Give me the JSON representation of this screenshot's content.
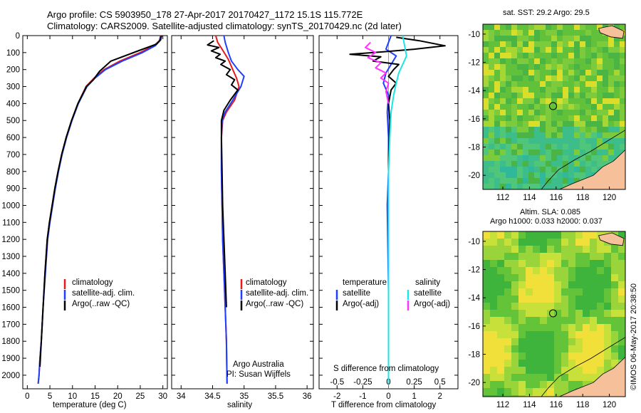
{
  "header": {
    "line1": "Argo profile: CS 5903950_178 27-Apr-2017 20170427_1172 15.1S 115.772E",
    "line2": "Climatology: CARS2009. Satellite-adjusted climatology: synTS_20170429.nc (2d later)"
  },
  "credit": "©IMOS 06-May-2017 20:38:50",
  "colors": {
    "climatology": "#e41a1c",
    "satellite": "#1f3fff",
    "argo": "#000000",
    "satellite_sal": "#19e6e6",
    "argo_sal": "#ff33ff",
    "land": "#f5c09a"
  },
  "chart_data": [
    {
      "id": "temperature",
      "type": "line",
      "xlabel": "temperature (deg C)",
      "ylabel": "",
      "xlim": [
        -1,
        31
      ],
      "ylim": [
        2080,
        0
      ],
      "xticks": [
        0,
        5,
        10,
        15,
        20,
        25,
        30
      ],
      "yticks": [
        0,
        100,
        200,
        300,
        400,
        500,
        600,
        700,
        800,
        900,
        1000,
        1100,
        1200,
        1300,
        1400,
        1500,
        1600,
        1700,
        1800,
        1900,
        2000
      ],
      "legend": [
        "climatology",
        "satellite-adj. clim.",
        "Argo(..raw -QC)"
      ],
      "legend_position": "lower-center",
      "series": [
        {
          "name": "climatology",
          "color": "#e41a1c",
          "x": [
            29.5,
            29.2,
            28.0,
            25.0,
            20.5,
            17.0,
            14.8,
            13.0,
            11.2,
            9.8,
            8.6,
            7.6,
            6.8,
            6.1,
            5.5,
            4.9,
            4.4,
            3.9,
            3.5,
            3.1,
            2.8,
            2.6,
            2.4
          ],
          "y": [
            0,
            30,
            60,
            100,
            150,
            200,
            250,
            300,
            400,
            500,
            600,
            700,
            800,
            900,
            1000,
            1100,
            1200,
            1400,
            1600,
            1800,
            1900,
            2000,
            2050
          ]
        },
        {
          "name": "satellite-adj. clim.",
          "color": "#1f3fff",
          "x": [
            29.6,
            29.3,
            28.3,
            25.5,
            21.0,
            17.3,
            15.0,
            13.2,
            11.3,
            9.9,
            8.7,
            7.7,
            6.9,
            6.2,
            5.6,
            5.0,
            4.5,
            4.0,
            3.5,
            3.1,
            2.8,
            2.6,
            2.4
          ],
          "y": [
            0,
            30,
            60,
            100,
            150,
            200,
            250,
            300,
            400,
            500,
            600,
            700,
            800,
            900,
            1000,
            1100,
            1200,
            1400,
            1600,
            1800,
            1900,
            2000,
            2050
          ]
        },
        {
          "name": "Argo(..raw -QC)",
          "color": "#000000",
          "x": [
            29.7,
            29.5,
            28.6,
            24.5,
            18.5,
            16.0,
            14.6,
            13.1,
            11.2,
            9.8,
            8.6,
            7.6,
            6.8,
            6.1,
            5.5,
            4.9,
            4.4,
            3.9,
            3.5,
            3.1,
            2.8
          ],
          "y": [
            0,
            25,
            50,
            90,
            150,
            210,
            260,
            300,
            400,
            500,
            600,
            700,
            800,
            900,
            1000,
            1100,
            1200,
            1400,
            1600,
            1800,
            1950
          ]
        }
      ]
    },
    {
      "id": "salinity",
      "type": "line",
      "xlabel": "salinity",
      "ylabel": "",
      "xlim": [
        33.85,
        36.1
      ],
      "ylim": [
        2080,
        0
      ],
      "xticks": [
        34,
        34.5,
        35,
        35.5,
        36
      ],
      "legend": [
        "climatology",
        "satellite-adj. clim.",
        "Argo(..raw -QC)"
      ],
      "legend_position": "lower-right",
      "annotations": [
        "Argo Australia",
        "PI: Susan Wijffels"
      ],
      "series": [
        {
          "name": "climatology",
          "color": "#e41a1c",
          "x": [
            34.55,
            34.58,
            34.65,
            34.75,
            34.82,
            34.88,
            34.92,
            34.85,
            34.72,
            34.66,
            34.64,
            34.64,
            34.65,
            34.66,
            34.68,
            34.7,
            34.72,
            34.73
          ],
          "y": [
            0,
            40,
            80,
            140,
            200,
            250,
            300,
            380,
            450,
            500,
            600,
            800,
            1000,
            1200,
            1400,
            1600,
            1800,
            2050
          ]
        },
        {
          "name": "satellite-adj. clim.",
          "color": "#1f3fff",
          "x": [
            34.68,
            34.7,
            34.75,
            34.8,
            34.9,
            35.0,
            34.95,
            34.82,
            34.7,
            34.65,
            34.64,
            34.64,
            34.65,
            34.66,
            34.68,
            34.7,
            34.72,
            34.73
          ],
          "y": [
            0,
            40,
            100,
            150,
            200,
            240,
            300,
            380,
            450,
            500,
            600,
            800,
            1000,
            1200,
            1400,
            1600,
            1800,
            2050
          ]
        },
        {
          "name": "Argo(..raw -QC)",
          "color": "#000000",
          "x": [
            34.52,
            34.42,
            34.6,
            34.48,
            34.62,
            34.55,
            34.7,
            34.63,
            34.78,
            34.72,
            34.85,
            34.8,
            34.9,
            34.78,
            34.68,
            34.64,
            34.64,
            34.65,
            34.66,
            34.68,
            34.7,
            34.72
          ],
          "y": [
            30,
            55,
            70,
            90,
            110,
            130,
            150,
            170,
            200,
            230,
            260,
            290,
            320,
            380,
            440,
            500,
            600,
            800,
            1000,
            1200,
            1400,
            1600
          ]
        }
      ]
    },
    {
      "id": "difference",
      "type": "line",
      "xlabel": "T difference from climatology",
      "xlabel_top": "S difference from climatology",
      "xlim": [
        -2.7,
        2.7
      ],
      "ylim": [
        2080,
        0
      ],
      "xticks": [
        -2,
        -1,
        0,
        1,
        2
      ],
      "xticks_top_labels": [
        "-0.5",
        "-0.25",
        "0",
        "0.25",
        "0.5"
      ],
      "legend_left_title": "temperature",
      "legend_right_title": "salinity",
      "legend_left": [
        "satellite",
        "Argo(-adj)"
      ],
      "legend_right": [
        "satellite",
        "Argo(-adj)"
      ],
      "series": [
        {
          "name": "temperature satellite",
          "color": "#1f3fff",
          "x": [
            0.1,
            0.0,
            -0.1,
            0.3,
            0.1,
            -0.1,
            -0.2,
            0.0,
            -0.05,
            0.0,
            0.0,
            -0.05,
            0.0,
            0.0
          ],
          "y": [
            0,
            40,
            80,
            120,
            170,
            220,
            280,
            350,
            450,
            600,
            800,
            1000,
            1500,
            2050
          ]
        },
        {
          "name": "temperature Argo(-adj)",
          "color": "#000000",
          "x": [
            0.3,
            1.2,
            2.2,
            1.0,
            -0.2,
            -1.5,
            -0.3,
            -0.6,
            0.4,
            0.2,
            0.0,
            0.3,
            0.1,
            0.0,
            0.05,
            0.0,
            0.0,
            0.0
          ],
          "y": [
            10,
            30,
            60,
            80,
            95,
            110,
            125,
            150,
            170,
            200,
            240,
            280,
            320,
            400,
            500,
            700,
            1000,
            1500
          ]
        },
        {
          "name": "salinity satellite",
          "color": "#19e6e6",
          "x": [
            0.55,
            0.6,
            0.65,
            0.7,
            0.55,
            0.4,
            0.3,
            0.2,
            0.1,
            0.05,
            0.0,
            0.0,
            0.0
          ],
          "y": [
            0,
            40,
            80,
            120,
            170,
            220,
            280,
            350,
            450,
            600,
            800,
            1500,
            2050
          ]
        },
        {
          "name": "salinity Argo(-adj)",
          "color": "#ff33ff",
          "x": [
            -0.7,
            -0.9,
            -0.5,
            -0.8,
            -0.3,
            -0.5,
            -0.1,
            -0.3,
            0.0,
            -0.1,
            0.0
          ],
          "y": [
            40,
            70,
            100,
            130,
            160,
            190,
            220,
            250,
            280,
            330,
            400
          ]
        }
      ]
    },
    {
      "id": "sst-map",
      "type": "heatmap",
      "title": "sat. SST: 29.2  Argo: 29.5",
      "xlim": [
        110.5,
        121.2
      ],
      "ylim": [
        -21,
        -9.3
      ],
      "xticks": [
        112,
        114,
        116,
        118,
        120
      ],
      "yticks": [
        -10,
        -12,
        -14,
        -16,
        -18,
        -20
      ],
      "marker": {
        "lon": 115.772,
        "lat": -15.1
      }
    },
    {
      "id": "sla-map",
      "type": "heatmap",
      "title": "Altim. SLA: 0.085",
      "subtitle": "Argo h1000: 0.033 h2000: 0.037",
      "xlim": [
        110.5,
        121.2
      ],
      "ylim": [
        -21,
        -9.3
      ],
      "xticks": [
        112,
        114,
        116,
        118,
        120
      ],
      "yticks": [
        -10,
        -12,
        -14,
        -16,
        -18,
        -20
      ],
      "marker": {
        "lon": 115.772,
        "lat": -15.1
      }
    }
  ]
}
